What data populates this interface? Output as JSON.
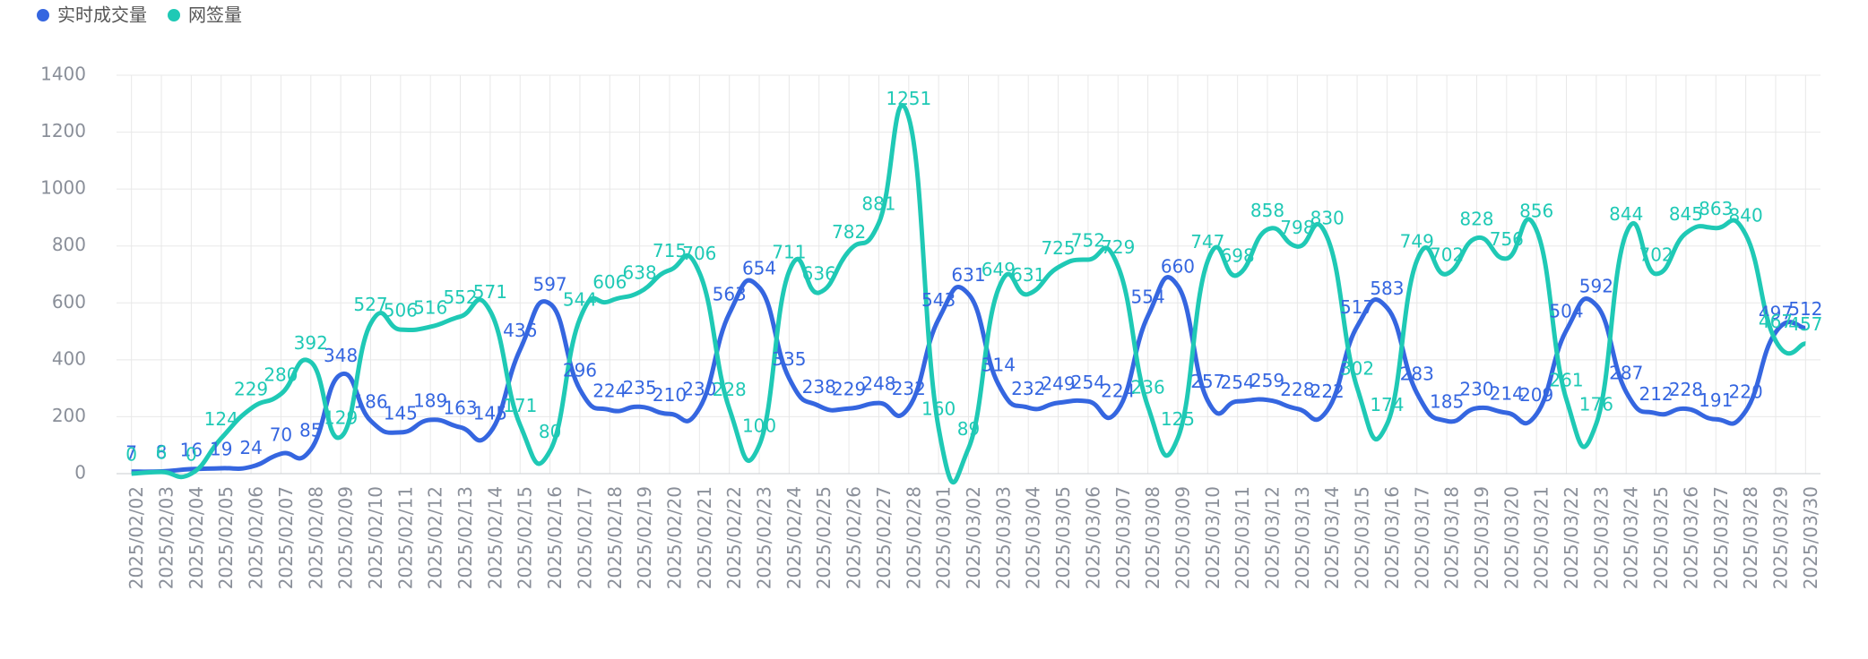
{
  "chart_data": {
    "type": "line",
    "categories": [
      "2025/02/02",
      "2025/02/03",
      "2025/02/04",
      "2025/02/05",
      "2025/02/06",
      "2025/02/07",
      "2025/02/08",
      "2025/02/09",
      "2025/02/10",
      "2025/02/11",
      "2025/02/12",
      "2025/02/13",
      "2025/02/14",
      "2025/02/15",
      "2025/02/16",
      "2025/02/17",
      "2025/02/18",
      "2025/02/19",
      "2025/02/20",
      "2025/02/21",
      "2025/02/22",
      "2025/02/23",
      "2025/02/24",
      "2025/02/25",
      "2025/02/26",
      "2025/02/27",
      "2025/02/28",
      "2025/03/01",
      "2025/03/02",
      "2025/03/03",
      "2025/03/04",
      "2025/03/05",
      "2025/03/06",
      "2025/03/07",
      "2025/03/08",
      "2025/03/09",
      "2025/03/10",
      "2025/03/11",
      "2025/03/12",
      "2025/03/13",
      "2025/03/14",
      "2025/03/15",
      "2025/03/16",
      "2025/03/17",
      "2025/03/18",
      "2025/03/19",
      "2025/03/20",
      "2025/03/21",
      "2025/03/22",
      "2025/03/23",
      "2025/03/24",
      "2025/03/25",
      "2025/03/26",
      "2025/03/27",
      "2025/03/28",
      "2025/03/29",
      "2025/03/30"
    ],
    "series": [
      {
        "name": "实时成交量",
        "color": "#3566e0",
        "values": [
          7,
          8,
          16,
          19,
          24,
          70,
          85,
          348,
          186,
          145,
          189,
          163,
          145,
          436,
          597,
          296,
          224,
          235,
          210,
          230,
          563,
          654,
          335,
          238,
          229,
          248,
          232,
          543,
          631,
          314,
          232,
          249,
          254,
          224,
          554,
          660,
          257,
          254,
          259,
          228,
          222,
          517,
          583,
          283,
          185,
          230,
          214,
          209,
          504,
          592,
          287,
          212,
          228,
          191,
          220,
          497,
          512
        ]
      },
      {
        "name": "网签量",
        "color": "#1fc9b5",
        "values": [
          0,
          6,
          0,
          124,
          229,
          280,
          392,
          129,
          527,
          506,
          516,
          552,
          571,
          171,
          80,
          544,
          606,
          638,
          715,
          706,
          228,
          100,
          711,
          636,
          782,
          881,
          1251,
          160,
          89,
          649,
          631,
          725,
          752,
          729,
          236,
          125,
          747,
          698,
          858,
          798,
          830,
          302,
          174,
          749,
          702,
          828,
          756,
          856,
          261,
          176,
          844,
          702,
          845,
          863,
          840,
          467,
          457
        ]
      }
    ],
    "ylim": [
      0,
      1400
    ],
    "yticks": [
      0,
      200,
      400,
      600,
      800,
      1000,
      1200,
      1400
    ],
    "grid": true,
    "legend": "top-left"
  }
}
